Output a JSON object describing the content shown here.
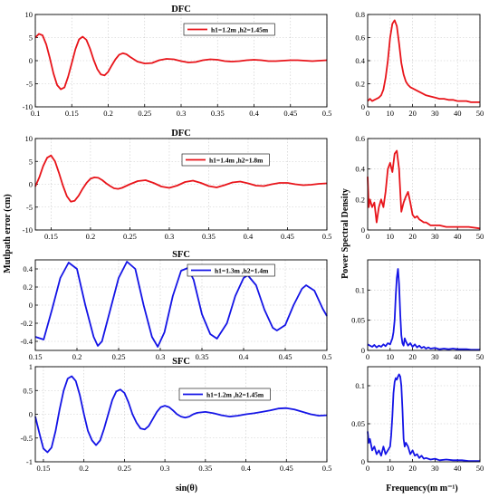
{
  "figure": {
    "shared_ylabel_left": "Mutlpath error (cm)",
    "shared_ylabel_right": "Power Spectral Density",
    "shared_xlabel_left": "sin(θ)",
    "shared_xlabel_right": "Frequency(m m⁻¹)"
  },
  "colors": {
    "red": "#e8141a",
    "blue": "#1414e6",
    "axis": "#000000",
    "grid": "#c8c8c8"
  },
  "chart_data": [
    {
      "type": "line",
      "panel": "left-1",
      "title": "DFC",
      "color": "red",
      "series": [
        {
          "name": "h1=1.2m ,h2=1.45m",
          "x": [
            0.1,
            0.105,
            0.11,
            0.115,
            0.12,
            0.125,
            0.13,
            0.135,
            0.14,
            0.145,
            0.15,
            0.155,
            0.16,
            0.165,
            0.17,
            0.175,
            0.18,
            0.185,
            0.19,
            0.195,
            0.2,
            0.205,
            0.21,
            0.215,
            0.22,
            0.225,
            0.23,
            0.24,
            0.25,
            0.26,
            0.27,
            0.28,
            0.29,
            0.3,
            0.31,
            0.32,
            0.33,
            0.34,
            0.35,
            0.36,
            0.37,
            0.38,
            0.39,
            0.4,
            0.41,
            0.42,
            0.43,
            0.44,
            0.45,
            0.46,
            0.47,
            0.48,
            0.49,
            0.5
          ],
          "y": [
            5.0,
            5.8,
            5.5,
            3.5,
            0.5,
            -2.8,
            -5.3,
            -6.2,
            -5.8,
            -3.5,
            -0.5,
            2.5,
            4.6,
            5.2,
            4.5,
            2.6,
            0.2,
            -1.8,
            -3.0,
            -3.2,
            -2.4,
            -1.0,
            0.3,
            1.3,
            1.6,
            1.4,
            0.8,
            -0.2,
            -0.6,
            -0.5,
            0.1,
            0.4,
            0.3,
            -0.1,
            -0.4,
            -0.3,
            0.1,
            0.3,
            0.2,
            -0.1,
            -0.2,
            -0.1,
            0.1,
            0.2,
            0.1,
            -0.1,
            -0.1,
            0.0,
            0.1,
            0.1,
            0.0,
            -0.1,
            0.0,
            0.1
          ]
        }
      ],
      "xlim": [
        0.1,
        0.5
      ],
      "ylim": [
        -10,
        10
      ],
      "xticks": [
        0.1,
        0.15,
        0.2,
        0.25,
        0.3,
        0.35,
        0.4,
        0.45,
        0.5
      ],
      "xtick_labels": [
        "0.1",
        "0.15",
        "0.2",
        "0.25",
        "0.3",
        "0.35",
        "0.4",
        "0.45",
        "0.5"
      ],
      "yticks": [
        -10,
        -5,
        0,
        5,
        10
      ],
      "ytick_labels": [
        "-10",
        "-5",
        "0",
        "5",
        "10"
      ]
    },
    {
      "type": "line",
      "panel": "left-2",
      "title": "DFC",
      "color": "red",
      "series": [
        {
          "name": "h1=1.4m ,h2=1.8m",
          "x": [
            0.13,
            0.135,
            0.14,
            0.145,
            0.15,
            0.155,
            0.16,
            0.165,
            0.17,
            0.175,
            0.18,
            0.185,
            0.19,
            0.195,
            0.2,
            0.205,
            0.21,
            0.215,
            0.22,
            0.225,
            0.23,
            0.235,
            0.24,
            0.25,
            0.26,
            0.27,
            0.28,
            0.29,
            0.3,
            0.31,
            0.32,
            0.33,
            0.34,
            0.35,
            0.36,
            0.37,
            0.38,
            0.39,
            0.4,
            0.41,
            0.42,
            0.43,
            0.44,
            0.45,
            0.46,
            0.47,
            0.48,
            0.49,
            0.5
          ],
          "y": [
            -0.5,
            1.5,
            4.0,
            5.8,
            6.3,
            5.0,
            2.5,
            -0.3,
            -2.6,
            -3.8,
            -3.6,
            -2.5,
            -1.0,
            0.3,
            1.2,
            1.5,
            1.4,
            0.9,
            0.2,
            -0.4,
            -0.9,
            -1.0,
            -0.8,
            0.0,
            0.7,
            0.9,
            0.3,
            -0.5,
            -0.8,
            -0.3,
            0.5,
            0.8,
            0.3,
            -0.4,
            -0.7,
            -0.2,
            0.4,
            0.6,
            0.2,
            -0.3,
            -0.4,
            0.0,
            0.3,
            0.3,
            0.0,
            -0.2,
            -0.1,
            0.1,
            0.2
          ]
        }
      ],
      "xlim": [
        0.13,
        0.5
      ],
      "ylim": [
        -10,
        10
      ],
      "xticks": [
        0.15,
        0.2,
        0.25,
        0.3,
        0.35,
        0.4,
        0.45,
        0.5
      ],
      "xtick_labels": [
        "0.15",
        "0.2",
        "0.25",
        "0.3",
        "0.35",
        "0.4",
        "0.45",
        "0.5"
      ],
      "yticks": [
        -10,
        -5,
        0,
        5,
        10
      ],
      "ytick_labels": [
        "-10",
        "-5",
        "0",
        "5",
        "10"
      ]
    },
    {
      "type": "line",
      "panel": "left-3",
      "title": "SFC",
      "color": "blue",
      "series": [
        {
          "name": "h1=1.3m ,h2=1.4m",
          "x": [
            0.15,
            0.16,
            0.17,
            0.18,
            0.19,
            0.2,
            0.21,
            0.22,
            0.225,
            0.23,
            0.24,
            0.25,
            0.26,
            0.27,
            0.28,
            0.29,
            0.297,
            0.305,
            0.315,
            0.325,
            0.333,
            0.34,
            0.35,
            0.36,
            0.368,
            0.38,
            0.39,
            0.4,
            0.405,
            0.415,
            0.425,
            0.435,
            0.44,
            0.45,
            0.46,
            0.47,
            0.475,
            0.485,
            0.495,
            0.5
          ],
          "y": [
            -0.35,
            -0.38,
            -0.05,
            0.3,
            0.47,
            0.4,
            0.0,
            -0.35,
            -0.45,
            -0.4,
            -0.05,
            0.3,
            0.48,
            0.4,
            0.0,
            -0.35,
            -0.46,
            -0.3,
            0.1,
            0.38,
            0.41,
            0.28,
            -0.1,
            -0.32,
            -0.37,
            -0.2,
            0.1,
            0.3,
            0.33,
            0.22,
            -0.05,
            -0.25,
            -0.28,
            -0.22,
            0.0,
            0.18,
            0.22,
            0.16,
            -0.04,
            -0.12
          ]
        }
      ],
      "xlim": [
        0.15,
        0.5
      ],
      "ylim": [
        -0.5,
        0.5
      ],
      "xticks": [
        0.15,
        0.2,
        0.25,
        0.3,
        0.35,
        0.4,
        0.45,
        0.5
      ],
      "xtick_labels": [
        "0.15",
        "0.2",
        "0.25",
        "0.3",
        "0.35",
        "0.4",
        "0.45",
        "0.5"
      ],
      "yticks": [
        -0.4,
        -0.2,
        0,
        0.2,
        0.4
      ],
      "ytick_labels": [
        "-0.4",
        "-0.2",
        "0",
        "0.2",
        "0.4"
      ]
    },
    {
      "type": "line",
      "panel": "left-4",
      "title": "SFC",
      "color": "blue",
      "series": [
        {
          "name": "h1=1.2m ,h2=1.45m",
          "x": [
            0.14,
            0.145,
            0.15,
            0.155,
            0.16,
            0.165,
            0.17,
            0.175,
            0.18,
            0.185,
            0.19,
            0.195,
            0.2,
            0.205,
            0.21,
            0.215,
            0.22,
            0.225,
            0.23,
            0.235,
            0.24,
            0.245,
            0.25,
            0.255,
            0.26,
            0.265,
            0.27,
            0.275,
            0.28,
            0.285,
            0.29,
            0.295,
            0.3,
            0.305,
            0.31,
            0.315,
            0.32,
            0.325,
            0.33,
            0.335,
            0.34,
            0.35,
            0.36,
            0.37,
            0.38,
            0.39,
            0.4,
            0.41,
            0.42,
            0.43,
            0.44,
            0.45,
            0.46,
            0.47,
            0.48,
            0.49,
            0.5
          ],
          "y": [
            -0.05,
            -0.4,
            -0.72,
            -0.8,
            -0.7,
            -0.35,
            0.1,
            0.5,
            0.75,
            0.8,
            0.7,
            0.4,
            0.0,
            -0.35,
            -0.55,
            -0.65,
            -0.55,
            -0.3,
            0.0,
            0.3,
            0.48,
            0.52,
            0.45,
            0.25,
            0.0,
            -0.18,
            -0.3,
            -0.32,
            -0.25,
            -0.1,
            0.05,
            0.15,
            0.18,
            0.15,
            0.08,
            0.0,
            -0.05,
            -0.07,
            -0.05,
            0.0,
            0.03,
            0.05,
            0.02,
            -0.02,
            -0.05,
            -0.03,
            0.0,
            0.02,
            0.05,
            0.08,
            0.12,
            0.13,
            0.1,
            0.05,
            0.0,
            -0.03,
            -0.02
          ]
        }
      ],
      "xlim": [
        0.14,
        0.5
      ],
      "ylim": [
        -1,
        1
      ],
      "xticks": [
        0.15,
        0.2,
        0.25,
        0.3,
        0.35,
        0.4,
        0.45,
        0.5
      ],
      "xtick_labels": [
        "0.15",
        "0.2",
        "0.25",
        "0.3",
        "0.35",
        "0.4",
        "0.45",
        "0.5"
      ],
      "yticks": [
        -1,
        -0.5,
        0,
        0.5,
        1
      ],
      "ytick_labels": [
        "-1",
        "-0.5",
        "0",
        "0.5",
        "1"
      ]
    },
    {
      "type": "line",
      "panel": "right-1",
      "color": "red",
      "series": [
        {
          "x": [
            0,
            1,
            2,
            3,
            4,
            5,
            6,
            7,
            8,
            9,
            10,
            11,
            12,
            13,
            14,
            15,
            16,
            17,
            18,
            19,
            20,
            22,
            24,
            26,
            28,
            30,
            32,
            34,
            36,
            38,
            40,
            42,
            44,
            46,
            48,
            50
          ],
          "y": [
            0.05,
            0.07,
            0.05,
            0.06,
            0.07,
            0.08,
            0.1,
            0.15,
            0.25,
            0.4,
            0.6,
            0.72,
            0.75,
            0.7,
            0.55,
            0.38,
            0.28,
            0.22,
            0.19,
            0.17,
            0.16,
            0.14,
            0.12,
            0.1,
            0.09,
            0.08,
            0.07,
            0.07,
            0.06,
            0.06,
            0.05,
            0.05,
            0.05,
            0.04,
            0.04,
            0.04
          ]
        }
      ],
      "xlim": [
        0,
        50
      ],
      "ylim": [
        0,
        0.8
      ],
      "xticks": [
        0,
        10,
        20,
        30,
        40,
        50
      ],
      "xtick_labels": [
        "0",
        "10",
        "20",
        "30",
        "40",
        "50"
      ],
      "yticks": [
        0,
        0.2,
        0.4,
        0.6,
        0.8
      ],
      "ytick_labels": [
        "0",
        "0.2",
        "0.4",
        "0.6",
        "0.8"
      ]
    },
    {
      "type": "line",
      "panel": "right-2",
      "color": "red",
      "series": [
        {
          "x": [
            0,
            0.5,
            1,
            2,
            3,
            4,
            5,
            6,
            7,
            8,
            9,
            10,
            11,
            12,
            13,
            14,
            15,
            16,
            17,
            18,
            19,
            20,
            21,
            22,
            23,
            24,
            25,
            26,
            27,
            28,
            30,
            32,
            35,
            40,
            45,
            50
          ],
          "y": [
            0.35,
            0.15,
            0.2,
            0.15,
            0.18,
            0.05,
            0.15,
            0.2,
            0.15,
            0.25,
            0.4,
            0.44,
            0.38,
            0.5,
            0.52,
            0.4,
            0.12,
            0.18,
            0.22,
            0.25,
            0.18,
            0.1,
            0.08,
            0.09,
            0.07,
            0.06,
            0.05,
            0.05,
            0.04,
            0.03,
            0.03,
            0.03,
            0.02,
            0.02,
            0.02,
            0.01
          ]
        }
      ],
      "xlim": [
        0,
        50
      ],
      "ylim": [
        0,
        0.6
      ],
      "xticks": [
        0,
        10,
        20,
        30,
        40,
        50
      ],
      "xtick_labels": [
        "0",
        "10",
        "20",
        "30",
        "40",
        "50"
      ],
      "yticks": [
        0,
        0.2,
        0.4,
        0.6
      ],
      "ytick_labels": [
        "0",
        "0.2",
        "0.4",
        "0.6"
      ]
    },
    {
      "type": "line",
      "panel": "right-3",
      "color": "blue",
      "series": [
        {
          "x": [
            0,
            1,
            2,
            3,
            4,
            5,
            6,
            7,
            8,
            9,
            10,
            11,
            11.5,
            12,
            12.5,
            13,
            13.5,
            14,
            14.5,
            15,
            15.5,
            16,
            16.5,
            17,
            18,
            19,
            20,
            21,
            22,
            23,
            24,
            25,
            26,
            27,
            28,
            30,
            32,
            34,
            36,
            38,
            40,
            42,
            44,
            46,
            48,
            50
          ],
          "y": [
            0.01,
            0.008,
            0.006,
            0.009,
            0.005,
            0.008,
            0.006,
            0.01,
            0.007,
            0.012,
            0.01,
            0.02,
            0.03,
            0.05,
            0.09,
            0.12,
            0.135,
            0.11,
            0.06,
            0.025,
            0.012,
            0.008,
            0.02,
            0.015,
            0.008,
            0.012,
            0.006,
            0.01,
            0.005,
            0.008,
            0.004,
            0.006,
            0.003,
            0.005,
            0.003,
            0.004,
            0.002,
            0.003,
            0.002,
            0.003,
            0.002,
            0.002,
            0.002,
            0.001,
            0.001,
            0.001
          ]
        }
      ],
      "xlim": [
        0,
        50
      ],
      "ylim": [
        0,
        0.15
      ],
      "xticks": [
        0,
        10,
        20,
        30,
        40,
        50
      ],
      "xtick_labels": [
        "0",
        "10",
        "20",
        "30",
        "40",
        "50"
      ],
      "yticks": [
        0,
        0.05,
        0.1
      ],
      "ytick_labels": [
        "0",
        "0.05",
        "0.1"
      ]
    },
    {
      "type": "line",
      "panel": "right-4",
      "color": "blue",
      "series": [
        {
          "x": [
            0,
            0.5,
            1,
            2,
            3,
            4,
            5,
            6,
            7,
            8,
            9,
            10,
            10.5,
            11,
            11.5,
            12,
            12.5,
            13,
            13.5,
            14,
            14.5,
            15,
            15.5,
            16,
            16.5,
            17,
            18,
            19,
            20,
            21,
            22,
            23,
            24,
            25,
            26,
            28,
            30,
            32,
            35,
            38,
            40,
            42,
            45,
            48,
            50
          ],
          "y": [
            0.04,
            0.025,
            0.03,
            0.015,
            0.02,
            0.01,
            0.015,
            0.008,
            0.02,
            0.01,
            0.015,
            0.02,
            0.035,
            0.06,
            0.09,
            0.105,
            0.11,
            0.108,
            0.112,
            0.115,
            0.112,
            0.1,
            0.07,
            0.03,
            0.02,
            0.025,
            0.02,
            0.01,
            0.015,
            0.008,
            0.01,
            0.005,
            0.008,
            0.004,
            0.005,
            0.003,
            0.004,
            0.002,
            0.003,
            0.002,
            0.002,
            0.002,
            0.001,
            0.001,
            0.001
          ]
        }
      ],
      "xlim": [
        0,
        50
      ],
      "ylim": [
        0,
        0.125
      ],
      "xticks": [
        0,
        10,
        20,
        30,
        40,
        50
      ],
      "xtick_labels": [
        "0",
        "10",
        "20",
        "30",
        "40",
        "50"
      ],
      "yticks": [
        0,
        0.05,
        0.1
      ],
      "ytick_labels": [
        "0",
        "0.05",
        "0.1"
      ]
    }
  ]
}
